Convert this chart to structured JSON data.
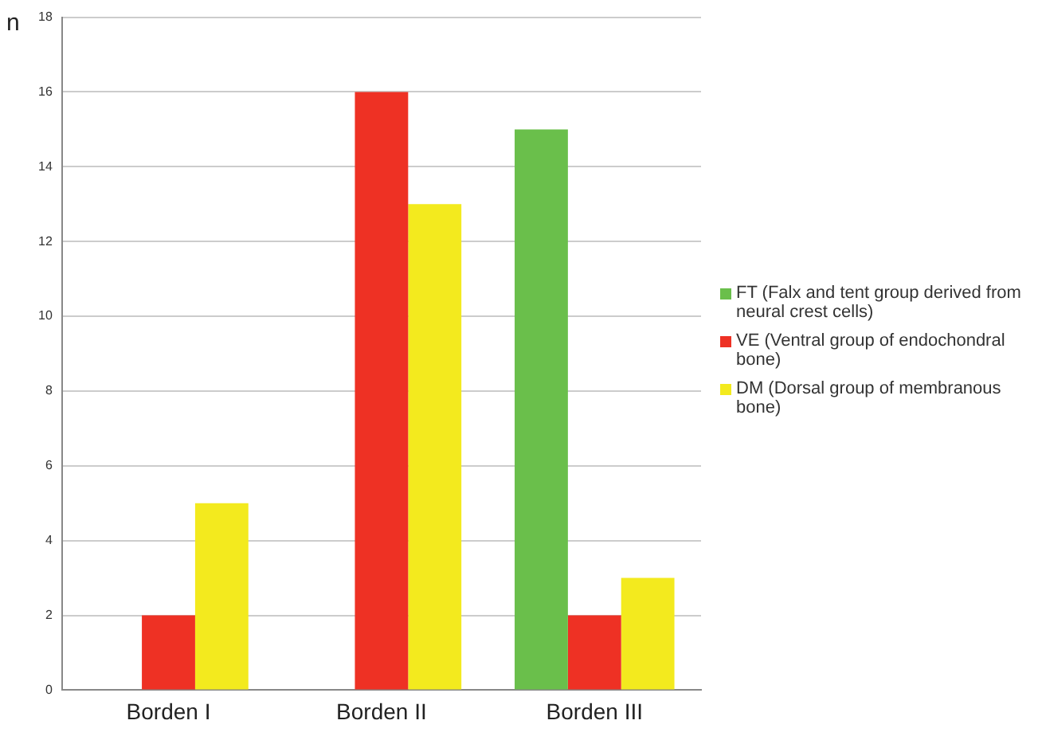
{
  "chart_data": {
    "type": "bar",
    "ylabel": "n",
    "categories": [
      "Borden I",
      "Borden II",
      "Borden III"
    ],
    "series": [
      {
        "name": "FT (Falx and tent group derived from neural crest cells)",
        "color": "#6abf4b",
        "values": [
          0,
          0,
          15
        ]
      },
      {
        "name": "VE (Ventral group of endochondral bone)",
        "color": "#ee3124",
        "values": [
          2,
          16,
          2
        ]
      },
      {
        "name": "DM (Dorsal group of membranous bone)",
        "color": "#f3ea1e",
        "values": [
          5,
          13,
          3
        ]
      }
    ],
    "ylim": [
      0,
      18
    ],
    "yticks": [
      0,
      2,
      4,
      6,
      8,
      10,
      12,
      14,
      16,
      18
    ],
    "grid": "y",
    "legend": "right"
  }
}
